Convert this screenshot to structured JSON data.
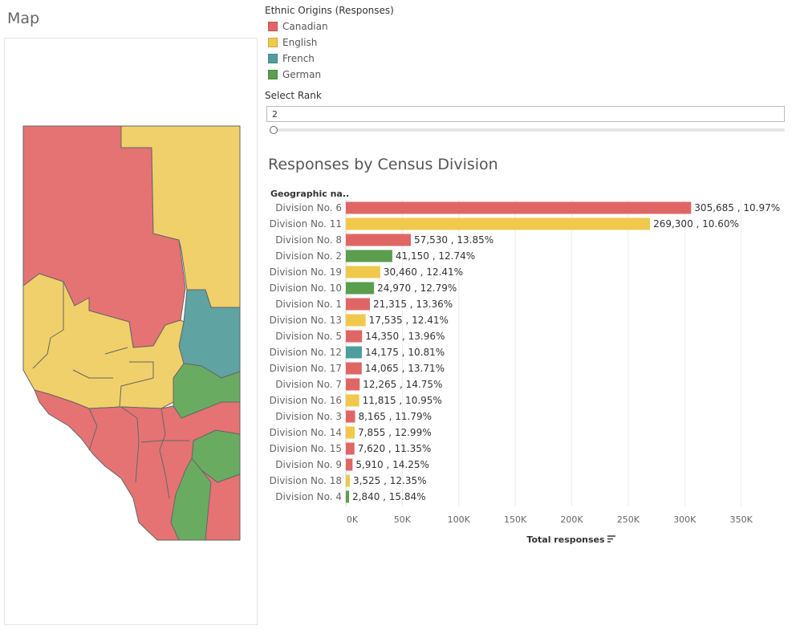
{
  "map": {
    "title": "Map"
  },
  "legend": {
    "title": "Ethnic Origins (Responses)",
    "items": [
      {
        "label": "Canadian",
        "color": "#e06666"
      },
      {
        "label": "English",
        "color": "#f0c94c"
      },
      {
        "label": "French",
        "color": "#4e9e9e"
      },
      {
        "label": "German",
        "color": "#5a9e4e"
      }
    ]
  },
  "rank": {
    "title": "Select Rank",
    "value": "2",
    "slider_fraction": 0.0
  },
  "chart_title": "Responses by Census Division",
  "chart_data": {
    "type": "bar",
    "orientation": "horizontal",
    "row_header": "Geographic na..",
    "xlabel": "Total responses",
    "xlim": [
      0,
      390000
    ],
    "ticks": [
      0,
      50000,
      100000,
      150000,
      200000,
      250000,
      300000,
      350000
    ],
    "tick_labels": [
      "0K",
      "50K",
      "100K",
      "150K",
      "200K",
      "250K",
      "300K",
      "350K"
    ],
    "grid": true,
    "categories": [
      "Division No. 6",
      "Division No. 11",
      "Division No. 8",
      "Division No. 2",
      "Division No. 19",
      "Division No. 10",
      "Division No. 1",
      "Division No. 13",
      "Division No. 5",
      "Division No. 12",
      "Division No. 17",
      "Division No. 7",
      "Division No. 16",
      "Division No. 3",
      "Division No. 14",
      "Division No. 15",
      "Division No. 9",
      "Division No. 18",
      "Division No. 4"
    ],
    "values": [
      305685,
      269300,
      57530,
      41150,
      30460,
      24970,
      21315,
      17535,
      14350,
      14175,
      14065,
      12265,
      11815,
      8165,
      7855,
      7620,
      5910,
      3525,
      2840
    ],
    "percents": [
      "10.97%",
      "10.60%",
      "13.85%",
      "12.74%",
      "12.41%",
      "12.79%",
      "13.36%",
      "12.41%",
      "13.96%",
      "10.81%",
      "13.71%",
      "14.75%",
      "10.95%",
      "11.79%",
      "12.99%",
      "11.35%",
      "14.25%",
      "12.35%",
      "15.84%"
    ],
    "origins": [
      "Canadian",
      "English",
      "Canadian",
      "German",
      "English",
      "German",
      "Canadian",
      "English",
      "Canadian",
      "French",
      "Canadian",
      "Canadian",
      "English",
      "Canadian",
      "English",
      "Canadian",
      "Canadian",
      "English",
      "German"
    ],
    "data_labels": [
      "305,685 , 10.97%",
      "269,300 , 10.60%",
      "57,530 , 13.85%",
      "41,150 , 12.74%",
      "30,460 , 12.41%",
      "24,970 , 12.79%",
      "21,315 , 13.36%",
      "17,535 , 12.41%",
      "14,350 , 13.96%",
      "14,175 , 10.81%",
      "14,065 , 13.71%",
      "12,265 , 14.75%",
      "11,815 , 10.95%",
      "8,165 , 11.79%",
      "7,855 , 12.99%",
      "7,620 , 11.35%",
      "5,910 , 14.25%",
      "3,525 , 12.35%",
      "2,840 , 15.84%"
    ]
  }
}
